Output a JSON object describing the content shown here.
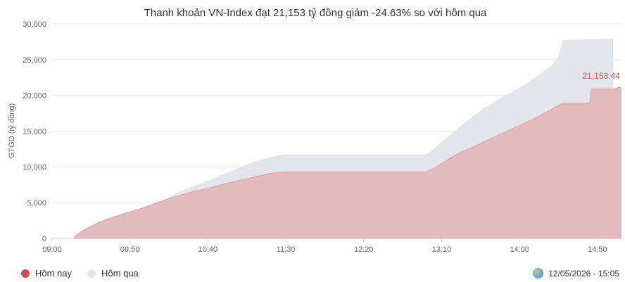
{
  "chart_data": {
    "type": "area",
    "title": "Thanh khoản VN-Index đạt 21,153 tỷ đồng giảm -24.63% so với hôm qua",
    "ylabel": "GTGD (tỷ đồng)",
    "xlabel": "",
    "ylim": [
      0,
      30000
    ],
    "yticks": [
      "0",
      "5,000",
      "10,000",
      "15,000",
      "20,000",
      "25,000",
      "30,000"
    ],
    "xticks": [
      "09:00",
      "09:50",
      "10:40",
      "11:30",
      "12:20",
      "13:10",
      "14:00",
      "14:50"
    ],
    "grid": true,
    "legend_position": "bottom-left",
    "last_value_label": "21,153.44",
    "series": [
      {
        "name": "Hôm qua",
        "color": "#e3e6ea",
        "points": [
          [
            "09:14",
            0
          ],
          [
            "09:15",
            400
          ],
          [
            "09:20",
            1200
          ],
          [
            "09:30",
            2300
          ],
          [
            "09:40",
            3100
          ],
          [
            "09:50",
            3700
          ],
          [
            "10:00",
            4300
          ],
          [
            "10:10",
            5000
          ],
          [
            "10:20",
            6300
          ],
          [
            "10:30",
            7200
          ],
          [
            "10:40",
            8000
          ],
          [
            "10:50",
            8900
          ],
          [
            "11:00",
            9800
          ],
          [
            "11:10",
            10700
          ],
          [
            "11:20",
            11300
          ],
          [
            "11:30",
            11700
          ],
          [
            "13:00",
            11700
          ],
          [
            "13:05",
            12400
          ],
          [
            "13:10",
            13400
          ],
          [
            "13:20",
            15200
          ],
          [
            "13:30",
            17000
          ],
          [
            "13:40",
            18500
          ],
          [
            "13:50",
            19800
          ],
          [
            "14:00",
            21000
          ],
          [
            "14:10",
            22400
          ],
          [
            "14:20",
            24000
          ],
          [
            "14:25",
            25200
          ],
          [
            "14:28",
            27700
          ],
          [
            "14:45",
            27800
          ],
          [
            "14:46",
            27800
          ],
          [
            "15:00",
            27900
          ]
        ]
      },
      {
        "name": "Hôm nay",
        "color": "#d77c80",
        "points": [
          [
            "09:14",
            0
          ],
          [
            "09:15",
            300
          ],
          [
            "09:20",
            1100
          ],
          [
            "09:30",
            2200
          ],
          [
            "09:40",
            3000
          ],
          [
            "09:50",
            3700
          ],
          [
            "10:00",
            4400
          ],
          [
            "10:10",
            5200
          ],
          [
            "10:20",
            5900
          ],
          [
            "10:30",
            6500
          ],
          [
            "10:40",
            7000
          ],
          [
            "10:50",
            7600
          ],
          [
            "11:00",
            8100
          ],
          [
            "11:10",
            8600
          ],
          [
            "11:20",
            9100
          ],
          [
            "11:30",
            9300
          ],
          [
            "13:00",
            9300
          ],
          [
            "13:05",
            9800
          ],
          [
            "13:10",
            10500
          ],
          [
            "13:20",
            11800
          ],
          [
            "13:30",
            12800
          ],
          [
            "13:40",
            13800
          ],
          [
            "13:50",
            14800
          ],
          [
            "14:00",
            15800
          ],
          [
            "14:10",
            16800
          ],
          [
            "14:20",
            18000
          ],
          [
            "14:28",
            18900
          ],
          [
            "14:45",
            18900
          ],
          [
            "14:46",
            20900
          ],
          [
            "15:00",
            20900
          ],
          [
            "15:05",
            21153
          ]
        ]
      }
    ]
  },
  "legend": {
    "today_label": "Hôm nay",
    "today_color": "#cf4b52",
    "yesterday_label": "Hôm qua",
    "yesterday_color": "#e3e6ea"
  },
  "timestamp": "12/05/2026 - 15:05",
  "icons": {
    "timestamp_icon": "globe-icon"
  }
}
